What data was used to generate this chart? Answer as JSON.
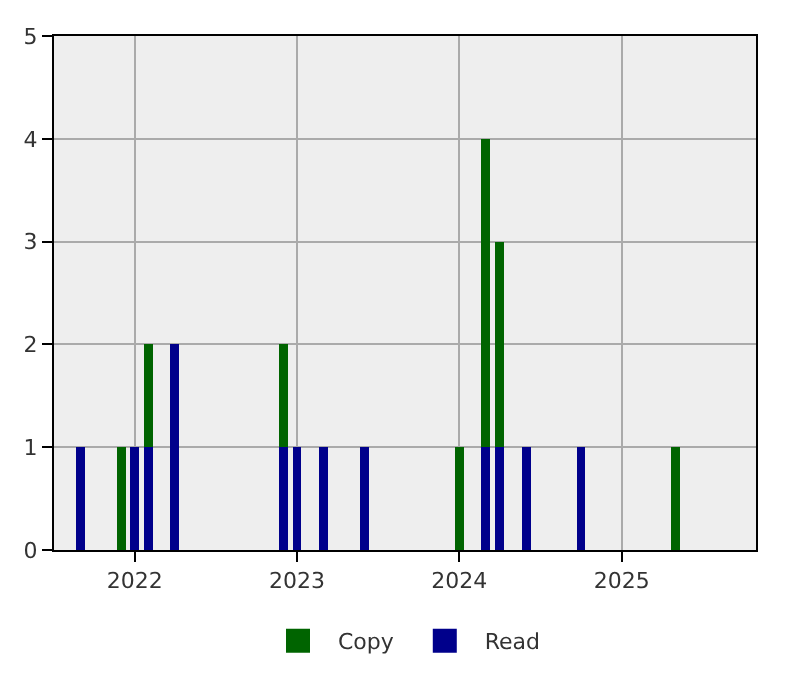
{
  "chart_data": {
    "type": "bar",
    "stacked": true,
    "x": [
      "2021-09-01",
      "2021-12-01",
      "2022-01-01",
      "2022-02-01",
      "2022-04-01",
      "2022-12-01",
      "2023-01-01",
      "2023-03-01",
      "2023-06-01",
      "2024-01-01",
      "2024-03-01",
      "2024-04-01",
      "2024-06-01",
      "2024-10-01",
      "2025-05-01"
    ],
    "series": [
      {
        "name": "Read",
        "color": "#00008b",
        "values": [
          1,
          null,
          1,
          1,
          2,
          1,
          1,
          1,
          1,
          null,
          1,
          1,
          1,
          1,
          null
        ]
      },
      {
        "name": "Copy",
        "color": "#006400",
        "values": [
          null,
          1,
          null,
          1,
          null,
          1,
          null,
          null,
          null,
          1,
          3,
          2,
          null,
          null,
          1
        ]
      }
    ],
    "xlim": [
      "2021-07-03",
      "2025-10-30"
    ],
    "xticks": [
      {
        "value": "2022-01-01",
        "label": "2022"
      },
      {
        "value": "2023-01-01",
        "label": "2023"
      },
      {
        "value": "2024-01-01",
        "label": "2024"
      },
      {
        "value": "2025-01-01",
        "label": "2025"
      }
    ],
    "ylim": [
      0,
      5
    ],
    "yticks": [
      0,
      1,
      2,
      3,
      4,
      5
    ],
    "grid": true,
    "legend": "bottom"
  }
}
